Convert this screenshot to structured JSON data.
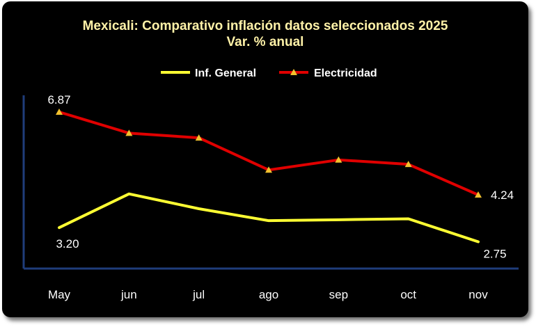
{
  "chart_data": {
    "type": "line",
    "title": "Mexicali: Comparativo inflación datos seleccionados 2025",
    "subtitle": "Var. % anual",
    "categories": [
      "May",
      "jun",
      "jul",
      "ago",
      "sep",
      "oct",
      "nov"
    ],
    "series": [
      {
        "name": "Inf. General",
        "color": "#ffff33",
        "marker": "none",
        "values": [
          3.2,
          4.27,
          3.8,
          3.42,
          3.45,
          3.48,
          2.75
        ]
      },
      {
        "name": "Electricidad",
        "color": "#e00000",
        "marker": "triangle",
        "marker_color": "#f2c12e",
        "values": [
          6.87,
          6.2,
          6.05,
          5.03,
          5.35,
          5.21,
          4.24
        ]
      }
    ],
    "data_labels": [
      {
        "series": 0,
        "index": 0,
        "text": "3.20"
      },
      {
        "series": 0,
        "index": 6,
        "text": "2.75"
      },
      {
        "series": 1,
        "index": 0,
        "text": "6.87"
      },
      {
        "series": 1,
        "index": 6,
        "text": "4.24"
      }
    ],
    "xlabel": "",
    "ylabel": "",
    "ylim": [
      1.9,
      7.4
    ],
    "grid": false,
    "legend": "top-center",
    "y_axis_color": "#1f3d7a",
    "x_axis_color": "#1f3d7a"
  }
}
